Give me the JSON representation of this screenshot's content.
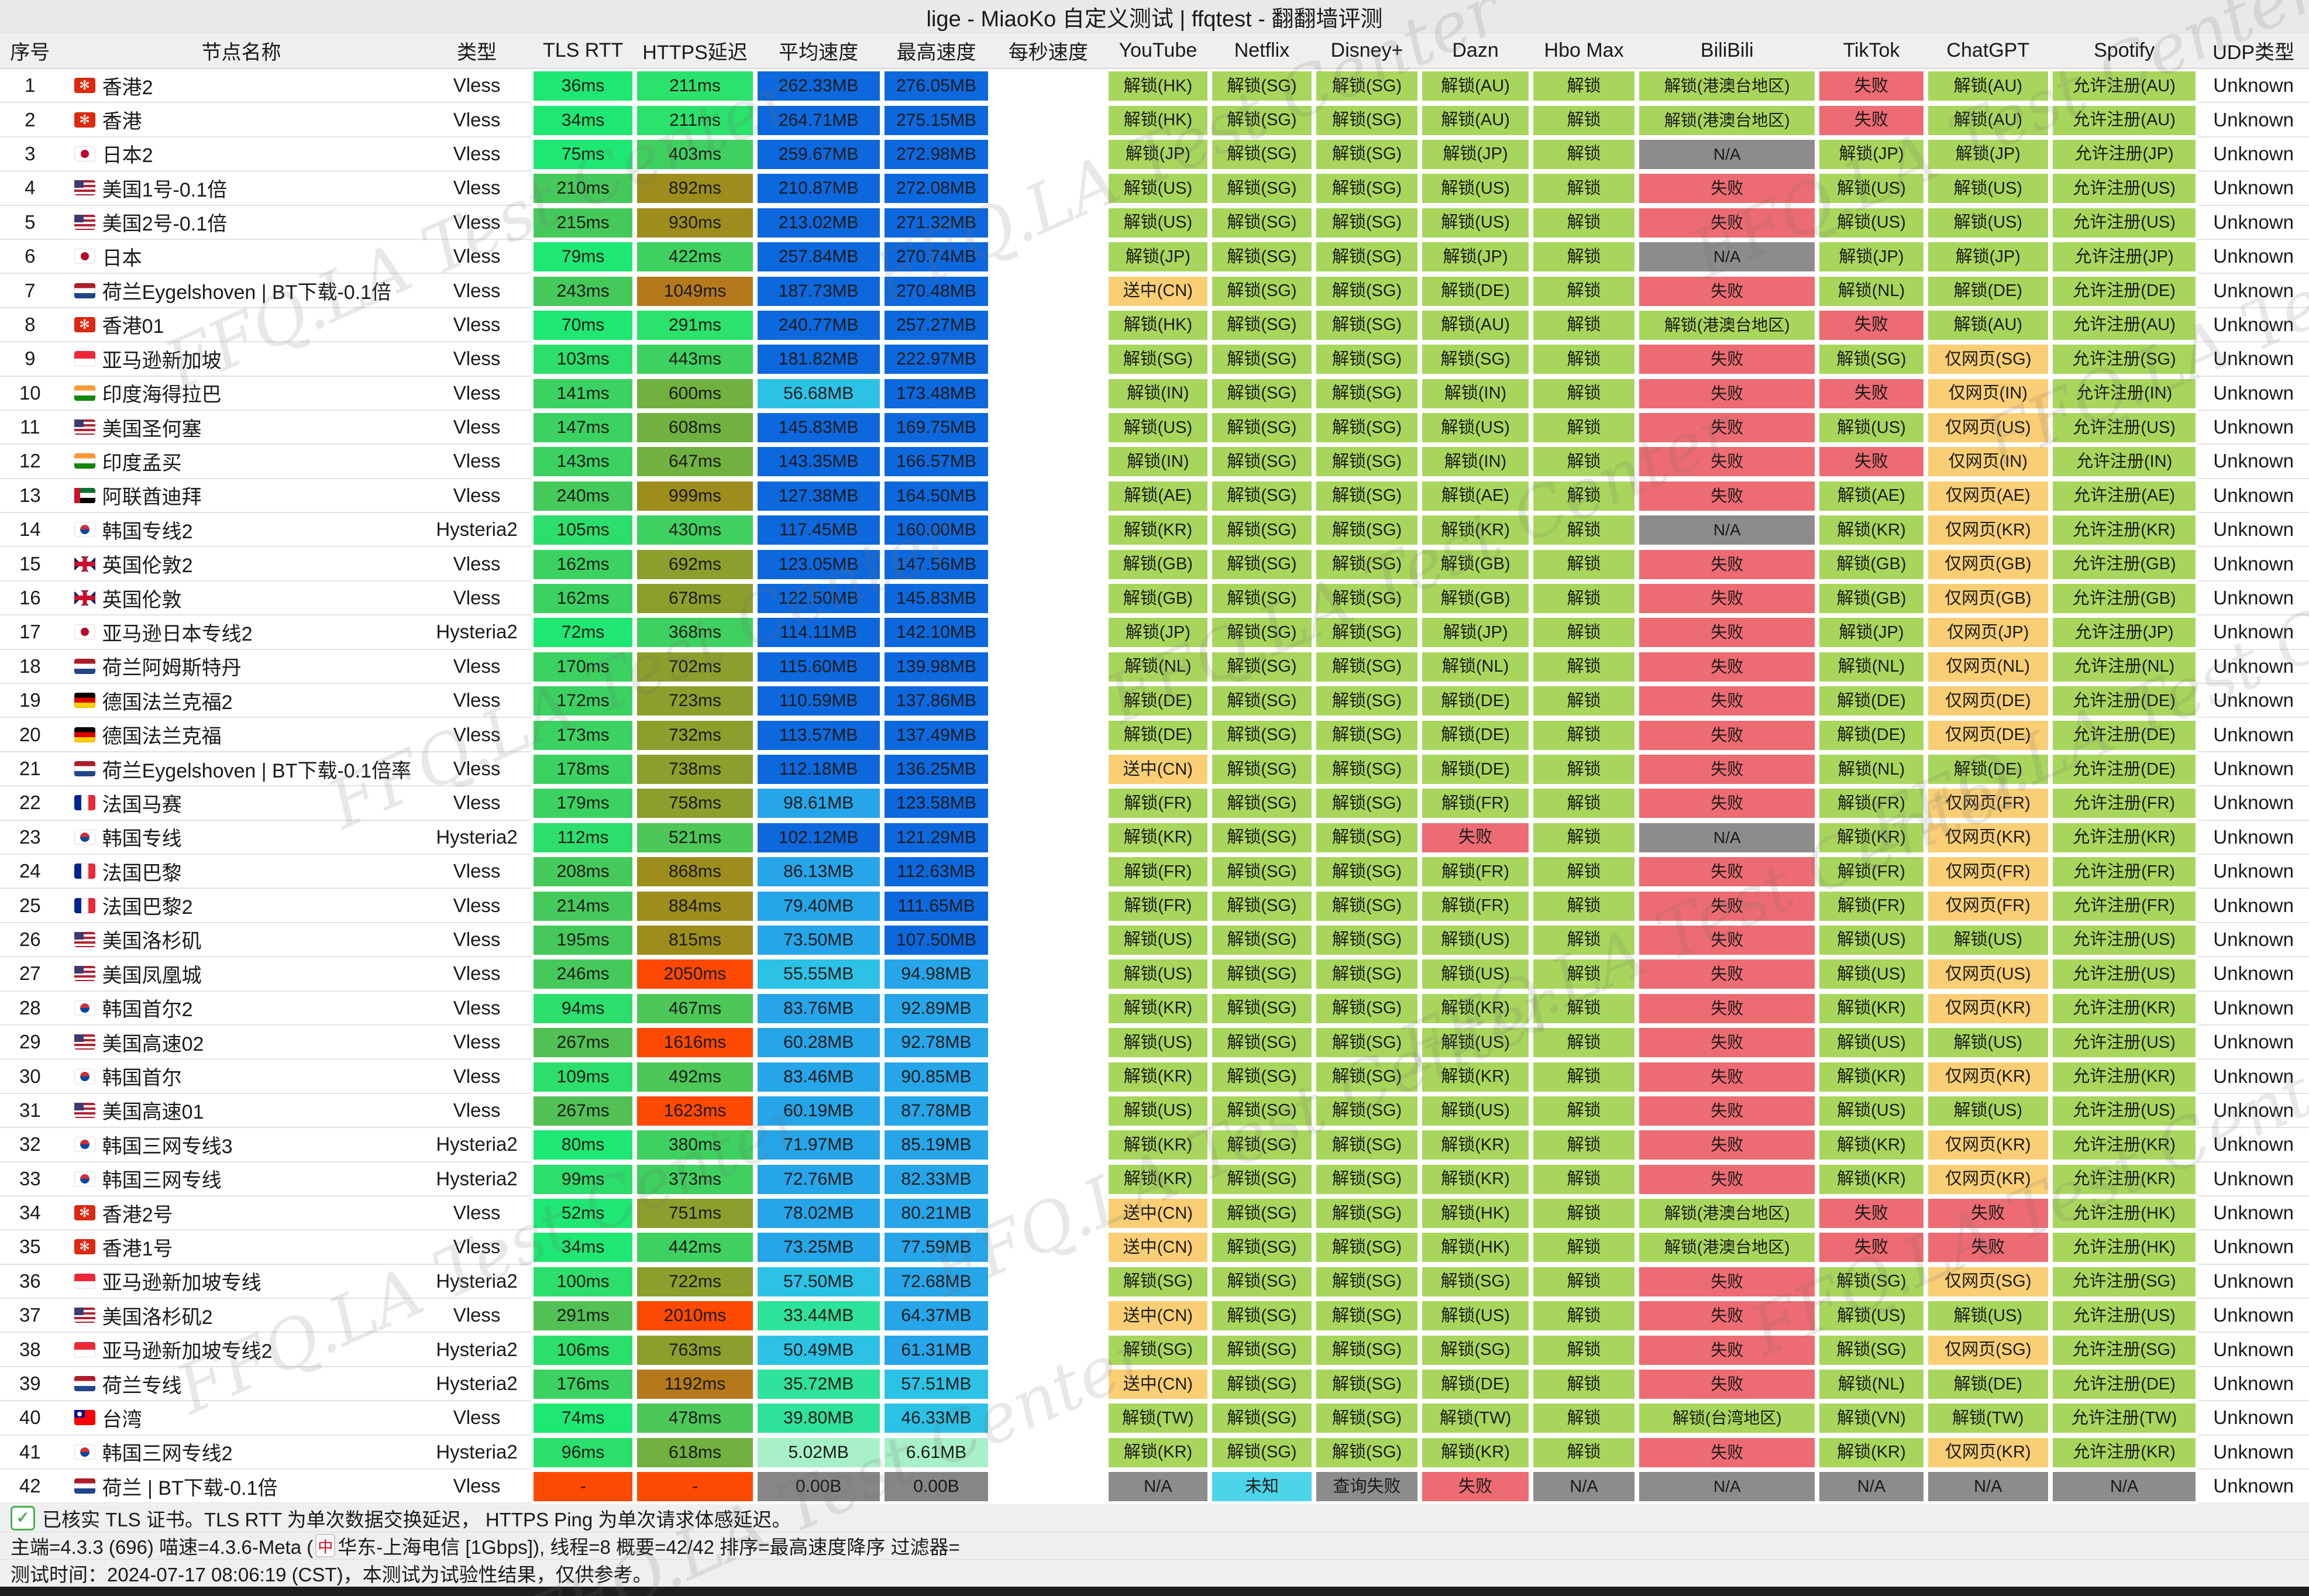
{
  "title": "lige - MiaoKo 自定义测试 | ffqtest - 翻翻墙评测",
  "watermark_text": "FFQ.LA Test Center",
  "columns": [
    {
      "key": "idx",
      "label": "序号",
      "w": 2.6
    },
    {
      "key": "name",
      "label": "节点名称",
      "w": 15.7
    },
    {
      "key": "type",
      "label": "类型",
      "w": 4.7
    },
    {
      "key": "rtt",
      "label": "TLS RTT",
      "w": 4.5
    },
    {
      "key": "https",
      "label": "HTTPS延迟",
      "w": 5.2
    },
    {
      "key": "avg",
      "label": "平均速度",
      "w": 5.5
    },
    {
      "key": "max",
      "label": "最高速度",
      "w": 4.7
    },
    {
      "key": "sps",
      "label": "每秒速度",
      "w": 5.0
    },
    {
      "key": "youtube",
      "label": "YouTube",
      "w": 4.5
    },
    {
      "key": "netflix",
      "label": "Netflix",
      "w": 4.5
    },
    {
      "key": "disney",
      "label": "Disney+",
      "w": 4.6
    },
    {
      "key": "dazn",
      "label": "Dazn",
      "w": 4.8
    },
    {
      "key": "hbomax",
      "label": "Hbo Max",
      "w": 4.6
    },
    {
      "key": "bilibili",
      "label": "BiliBili",
      "w": 7.8
    },
    {
      "key": "tiktok",
      "label": "TikTok",
      "w": 4.7
    },
    {
      "key": "chatgpt",
      "label": "ChatGPT",
      "w": 5.4
    },
    {
      "key": "spotify",
      "label": "Spotify",
      "w": 6.4
    },
    {
      "key": "udp",
      "label": "UDP类型",
      "w": 4.8
    }
  ],
  "row_fields": [
    "idx",
    "flag",
    "name",
    "type",
    "rtt",
    "https",
    "avg",
    "max",
    "statuses(youtube,netflix,disney,dazn,hbomax,bilibili,tiktok,chatgpt,spotify,udp)"
  ],
  "rows": [
    [
      1,
      "hk",
      "香港2",
      "Vless",
      "36ms",
      "211ms",
      "262.33MB",
      "276.05MB",
      [
        "解锁(HK)",
        "解锁(SG)",
        "解锁(SG)",
        "解锁(AU)",
        "解锁",
        "解锁(港澳台地区)",
        "失败",
        "解锁(AU)",
        "允许注册(AU)",
        "Unknown"
      ]
    ],
    [
      2,
      "hk",
      "香港",
      "Vless",
      "34ms",
      "211ms",
      "264.71MB",
      "275.15MB",
      [
        "解锁(HK)",
        "解锁(SG)",
        "解锁(SG)",
        "解锁(AU)",
        "解锁",
        "解锁(港澳台地区)",
        "失败",
        "解锁(AU)",
        "允许注册(AU)",
        "Unknown"
      ]
    ],
    [
      3,
      "jp",
      "日本2",
      "Vless",
      "75ms",
      "403ms",
      "259.67MB",
      "272.98MB",
      [
        "解锁(JP)",
        "解锁(SG)",
        "解锁(SG)",
        "解锁(JP)",
        "解锁",
        "N/A",
        "解锁(JP)",
        "解锁(JP)",
        "允许注册(JP)",
        "Unknown"
      ]
    ],
    [
      4,
      "us",
      "美国1号-0.1倍",
      "Vless",
      "210ms",
      "892ms",
      "210.87MB",
      "272.08MB",
      [
        "解锁(US)",
        "解锁(SG)",
        "解锁(SG)",
        "解锁(US)",
        "解锁",
        "失败",
        "解锁(US)",
        "解锁(US)",
        "允许注册(US)",
        "Unknown"
      ]
    ],
    [
      5,
      "us",
      "美国2号-0.1倍",
      "Vless",
      "215ms",
      "930ms",
      "213.02MB",
      "271.32MB",
      [
        "解锁(US)",
        "解锁(SG)",
        "解锁(SG)",
        "解锁(US)",
        "解锁",
        "失败",
        "解锁(US)",
        "解锁(US)",
        "允许注册(US)",
        "Unknown"
      ]
    ],
    [
      6,
      "jp",
      "日本",
      "Vless",
      "79ms",
      "422ms",
      "257.84MB",
      "270.74MB",
      [
        "解锁(JP)",
        "解锁(SG)",
        "解锁(SG)",
        "解锁(JP)",
        "解锁",
        "N/A",
        "解锁(JP)",
        "解锁(JP)",
        "允许注册(JP)",
        "Unknown"
      ]
    ],
    [
      7,
      "nl",
      "荷兰Eygelshoven | BT下载-0.1倍",
      "Vless",
      "243ms",
      "1049ms",
      "187.73MB",
      "270.48MB",
      [
        "送中(CN)",
        "解锁(SG)",
        "解锁(SG)",
        "解锁(DE)",
        "解锁",
        "失败",
        "解锁(NL)",
        "解锁(DE)",
        "允许注册(DE)",
        "Unknown"
      ]
    ],
    [
      8,
      "hk",
      "香港01",
      "Vless",
      "70ms",
      "291ms",
      "240.77MB",
      "257.27MB",
      [
        "解锁(HK)",
        "解锁(SG)",
        "解锁(SG)",
        "解锁(AU)",
        "解锁",
        "解锁(港澳台地区)",
        "失败",
        "解锁(AU)",
        "允许注册(AU)",
        "Unknown"
      ]
    ],
    [
      9,
      "sg",
      "亚马逊新加坡",
      "Vless",
      "103ms",
      "443ms",
      "181.82MB",
      "222.97MB",
      [
        "解锁(SG)",
        "解锁(SG)",
        "解锁(SG)",
        "解锁(SG)",
        "解锁",
        "失败",
        "解锁(SG)",
        "仅网页(SG)",
        "允许注册(SG)",
        "Unknown"
      ]
    ],
    [
      10,
      "in",
      "印度海得拉巴",
      "Vless",
      "141ms",
      "600ms",
      "56.68MB",
      "173.48MB",
      [
        "解锁(IN)",
        "解锁(SG)",
        "解锁(SG)",
        "解锁(IN)",
        "解锁",
        "失败",
        "失败",
        "仅网页(IN)",
        "允许注册(IN)",
        "Unknown"
      ]
    ],
    [
      11,
      "us",
      "美国圣何塞",
      "Vless",
      "147ms",
      "608ms",
      "145.83MB",
      "169.75MB",
      [
        "解锁(US)",
        "解锁(SG)",
        "解锁(SG)",
        "解锁(US)",
        "解锁",
        "失败",
        "解锁(US)",
        "仅网页(US)",
        "允许注册(US)",
        "Unknown"
      ]
    ],
    [
      12,
      "in",
      "印度孟买",
      "Vless",
      "143ms",
      "647ms",
      "143.35MB",
      "166.57MB",
      [
        "解锁(IN)",
        "解锁(SG)",
        "解锁(SG)",
        "解锁(IN)",
        "解锁",
        "失败",
        "失败",
        "仅网页(IN)",
        "允许注册(IN)",
        "Unknown"
      ]
    ],
    [
      13,
      "ae",
      "阿联酋迪拜",
      "Vless",
      "240ms",
      "999ms",
      "127.38MB",
      "164.50MB",
      [
        "解锁(AE)",
        "解锁(SG)",
        "解锁(SG)",
        "解锁(AE)",
        "解锁",
        "失败",
        "解锁(AE)",
        "仅网页(AE)",
        "允许注册(AE)",
        "Unknown"
      ]
    ],
    [
      14,
      "kr",
      "韩国专线2",
      "Hysteria2",
      "105ms",
      "430ms",
      "117.45MB",
      "160.00MB",
      [
        "解锁(KR)",
        "解锁(SG)",
        "解锁(SG)",
        "解锁(KR)",
        "解锁",
        "N/A",
        "解锁(KR)",
        "仅网页(KR)",
        "允许注册(KR)",
        "Unknown"
      ]
    ],
    [
      15,
      "gb",
      "英国伦敦2",
      "Vless",
      "162ms",
      "692ms",
      "123.05MB",
      "147.56MB",
      [
        "解锁(GB)",
        "解锁(SG)",
        "解锁(SG)",
        "解锁(GB)",
        "解锁",
        "失败",
        "解锁(GB)",
        "仅网页(GB)",
        "允许注册(GB)",
        "Unknown"
      ]
    ],
    [
      16,
      "gb",
      "英国伦敦",
      "Vless",
      "162ms",
      "678ms",
      "122.50MB",
      "145.83MB",
      [
        "解锁(GB)",
        "解锁(SG)",
        "解锁(SG)",
        "解锁(GB)",
        "解锁",
        "失败",
        "解锁(GB)",
        "仅网页(GB)",
        "允许注册(GB)",
        "Unknown"
      ]
    ],
    [
      17,
      "jp",
      "亚马逊日本专线2",
      "Hysteria2",
      "72ms",
      "368ms",
      "114.11MB",
      "142.10MB",
      [
        "解锁(JP)",
        "解锁(SG)",
        "解锁(SG)",
        "解锁(JP)",
        "解锁",
        "失败",
        "解锁(JP)",
        "仅网页(JP)",
        "允许注册(JP)",
        "Unknown"
      ]
    ],
    [
      18,
      "nl",
      "荷兰阿姆斯特丹",
      "Vless",
      "170ms",
      "702ms",
      "115.60MB",
      "139.98MB",
      [
        "解锁(NL)",
        "解锁(SG)",
        "解锁(SG)",
        "解锁(NL)",
        "解锁",
        "失败",
        "解锁(NL)",
        "仅网页(NL)",
        "允许注册(NL)",
        "Unknown"
      ]
    ],
    [
      19,
      "de",
      "德国法兰克福2",
      "Vless",
      "172ms",
      "723ms",
      "110.59MB",
      "137.86MB",
      [
        "解锁(DE)",
        "解锁(SG)",
        "解锁(SG)",
        "解锁(DE)",
        "解锁",
        "失败",
        "解锁(DE)",
        "仅网页(DE)",
        "允许注册(DE)",
        "Unknown"
      ]
    ],
    [
      20,
      "de",
      "德国法兰克福",
      "Vless",
      "173ms",
      "732ms",
      "113.57MB",
      "137.49MB",
      [
        "解锁(DE)",
        "解锁(SG)",
        "解锁(SG)",
        "解锁(DE)",
        "解锁",
        "失败",
        "解锁(DE)",
        "仅网页(DE)",
        "允许注册(DE)",
        "Unknown"
      ]
    ],
    [
      21,
      "nl",
      "荷兰Eygelshoven | BT下载-0.1倍率",
      "Vless",
      "178ms",
      "738ms",
      "112.18MB",
      "136.25MB",
      [
        "送中(CN)",
        "解锁(SG)",
        "解锁(SG)",
        "解锁(DE)",
        "解锁",
        "失败",
        "解锁(NL)",
        "解锁(DE)",
        "允许注册(DE)",
        "Unknown"
      ]
    ],
    [
      22,
      "fr",
      "法国马赛",
      "Vless",
      "179ms",
      "758ms",
      "98.61MB",
      "123.58MB",
      [
        "解锁(FR)",
        "解锁(SG)",
        "解锁(SG)",
        "解锁(FR)",
        "解锁",
        "失败",
        "解锁(FR)",
        "仅网页(FR)",
        "允许注册(FR)",
        "Unknown"
      ]
    ],
    [
      23,
      "kr",
      "韩国专线",
      "Hysteria2",
      "112ms",
      "521ms",
      "102.12MB",
      "121.29MB",
      [
        "解锁(KR)",
        "解锁(SG)",
        "解锁(SG)",
        "失败",
        "解锁",
        "N/A",
        "解锁(KR)",
        "仅网页(KR)",
        "允许注册(KR)",
        "Unknown"
      ]
    ],
    [
      24,
      "fr",
      "法国巴黎",
      "Vless",
      "208ms",
      "868ms",
      "86.13MB",
      "112.63MB",
      [
        "解锁(FR)",
        "解锁(SG)",
        "解锁(SG)",
        "解锁(FR)",
        "解锁",
        "失败",
        "解锁(FR)",
        "仅网页(FR)",
        "允许注册(FR)",
        "Unknown"
      ]
    ],
    [
      25,
      "fr",
      "法国巴黎2",
      "Vless",
      "214ms",
      "884ms",
      "79.40MB",
      "111.65MB",
      [
        "解锁(FR)",
        "解锁(SG)",
        "解锁(SG)",
        "解锁(FR)",
        "解锁",
        "失败",
        "解锁(FR)",
        "仅网页(FR)",
        "允许注册(FR)",
        "Unknown"
      ]
    ],
    [
      26,
      "us",
      "美国洛杉矶",
      "Vless",
      "195ms",
      "815ms",
      "73.50MB",
      "107.50MB",
      [
        "解锁(US)",
        "解锁(SG)",
        "解锁(SG)",
        "解锁(US)",
        "解锁",
        "失败",
        "解锁(US)",
        "解锁(US)",
        "允许注册(US)",
        "Unknown"
      ]
    ],
    [
      27,
      "us",
      "美国凤凰城",
      "Vless",
      "246ms",
      "2050ms",
      "55.55MB",
      "94.98MB",
      [
        "解锁(US)",
        "解锁(SG)",
        "解锁(SG)",
        "解锁(US)",
        "解锁",
        "失败",
        "解锁(US)",
        "仅网页(US)",
        "允许注册(US)",
        "Unknown"
      ]
    ],
    [
      28,
      "kr",
      "韩国首尔2",
      "Vless",
      "94ms",
      "467ms",
      "83.76MB",
      "92.89MB",
      [
        "解锁(KR)",
        "解锁(SG)",
        "解锁(SG)",
        "解锁(KR)",
        "解锁",
        "失败",
        "解锁(KR)",
        "仅网页(KR)",
        "允许注册(KR)",
        "Unknown"
      ]
    ],
    [
      29,
      "us",
      "美国高速02",
      "Vless",
      "267ms",
      "1616ms",
      "60.28MB",
      "92.78MB",
      [
        "解锁(US)",
        "解锁(SG)",
        "解锁(SG)",
        "解锁(US)",
        "解锁",
        "失败",
        "解锁(US)",
        "解锁(US)",
        "允许注册(US)",
        "Unknown"
      ]
    ],
    [
      30,
      "kr",
      "韩国首尔",
      "Vless",
      "109ms",
      "492ms",
      "83.46MB",
      "90.85MB",
      [
        "解锁(KR)",
        "解锁(SG)",
        "解锁(SG)",
        "解锁(KR)",
        "解锁",
        "失败",
        "解锁(KR)",
        "仅网页(KR)",
        "允许注册(KR)",
        "Unknown"
      ]
    ],
    [
      31,
      "us",
      "美国高速01",
      "Vless",
      "267ms",
      "1623ms",
      "60.19MB",
      "87.78MB",
      [
        "解锁(US)",
        "解锁(SG)",
        "解锁(SG)",
        "解锁(US)",
        "解锁",
        "失败",
        "解锁(US)",
        "解锁(US)",
        "允许注册(US)",
        "Unknown"
      ]
    ],
    [
      32,
      "kr",
      "韩国三网专线3",
      "Hysteria2",
      "80ms",
      "380ms",
      "71.97MB",
      "85.19MB",
      [
        "解锁(KR)",
        "解锁(SG)",
        "解锁(SG)",
        "解锁(KR)",
        "解锁",
        "失败",
        "解锁(KR)",
        "仅网页(KR)",
        "允许注册(KR)",
        "Unknown"
      ]
    ],
    [
      33,
      "kr",
      "韩国三网专线",
      "Hysteria2",
      "99ms",
      "373ms",
      "72.76MB",
      "82.33MB",
      [
        "解锁(KR)",
        "解锁(SG)",
        "解锁(SG)",
        "解锁(KR)",
        "解锁",
        "失败",
        "解锁(KR)",
        "仅网页(KR)",
        "允许注册(KR)",
        "Unknown"
      ]
    ],
    [
      34,
      "hk",
      "香港2号",
      "Vless",
      "52ms",
      "751ms",
      "78.02MB",
      "80.21MB",
      [
        "送中(CN)",
        "解锁(SG)",
        "解锁(SG)",
        "解锁(HK)",
        "解锁",
        "解锁(港澳台地区)",
        "失败",
        "失败",
        "允许注册(HK)",
        "Unknown"
      ]
    ],
    [
      35,
      "hk",
      "香港1号",
      "Vless",
      "34ms",
      "442ms",
      "73.25MB",
      "77.59MB",
      [
        "送中(CN)",
        "解锁(SG)",
        "解锁(SG)",
        "解锁(HK)",
        "解锁",
        "解锁(港澳台地区)",
        "失败",
        "失败",
        "允许注册(HK)",
        "Unknown"
      ]
    ],
    [
      36,
      "sg",
      "亚马逊新加坡专线",
      "Hysteria2",
      "100ms",
      "722ms",
      "57.50MB",
      "72.68MB",
      [
        "解锁(SG)",
        "解锁(SG)",
        "解锁(SG)",
        "解锁(SG)",
        "解锁",
        "失败",
        "解锁(SG)",
        "仅网页(SG)",
        "允许注册(SG)",
        "Unknown"
      ]
    ],
    [
      37,
      "us",
      "美国洛杉矶2",
      "Vless",
      "291ms",
      "2010ms",
      "33.44MB",
      "64.37MB",
      [
        "送中(CN)",
        "解锁(SG)",
        "解锁(SG)",
        "解锁(US)",
        "解锁",
        "失败",
        "解锁(US)",
        "解锁(US)",
        "允许注册(US)",
        "Unknown"
      ]
    ],
    [
      38,
      "sg",
      "亚马逊新加坡专线2",
      "Hysteria2",
      "106ms",
      "763ms",
      "50.49MB",
      "61.31MB",
      [
        "解锁(SG)",
        "解锁(SG)",
        "解锁(SG)",
        "解锁(SG)",
        "解锁",
        "失败",
        "解锁(SG)",
        "仅网页(SG)",
        "允许注册(SG)",
        "Unknown"
      ]
    ],
    [
      39,
      "nl",
      "荷兰专线",
      "Hysteria2",
      "176ms",
      "1192ms",
      "35.72MB",
      "57.51MB",
      [
        "送中(CN)",
        "解锁(SG)",
        "解锁(SG)",
        "解锁(DE)",
        "解锁",
        "失败",
        "解锁(NL)",
        "解锁(DE)",
        "允许注册(DE)",
        "Unknown"
      ]
    ],
    [
      40,
      "tw",
      "台湾",
      "Vless",
      "74ms",
      "478ms",
      "39.80MB",
      "46.33MB",
      [
        "解锁(TW)",
        "解锁(SG)",
        "解锁(SG)",
        "解锁(TW)",
        "解锁",
        "解锁(台湾地区)",
        "解锁(VN)",
        "解锁(TW)",
        "允许注册(TW)",
        "Unknown"
      ]
    ],
    [
      41,
      "kr",
      "韩国三网专线2",
      "Hysteria2",
      "96ms",
      "618ms",
      "5.02MB",
      "6.61MB",
      [
        "解锁(KR)",
        "解锁(SG)",
        "解锁(SG)",
        "解锁(KR)",
        "解锁",
        "失败",
        "解锁(KR)",
        "仅网页(KR)",
        "允许注册(KR)",
        "Unknown"
      ]
    ],
    [
      42,
      "nl",
      "荷兰 | BT下载-0.1倍",
      "Vless",
      "-",
      "-",
      "0.00B",
      "0.00B",
      [
        "N/A",
        "未知",
        "查询失败",
        "失败",
        "N/A",
        "N/A",
        "N/A",
        "N/A",
        "N/A",
        "Unknown"
      ]
    ]
  ],
  "palette": {
    "status_ok": "#a8d65c",
    "status_fail": "#ed6b72",
    "status_na": "#8c8c8c",
    "status_warn": "#f9ce74",
    "status_info": "#4ed4e8",
    "latency_dash": "#fe4902",
    "speed_zero": "#868686",
    "rtt_tiers": [
      [
        80,
        "#1ee873"
      ],
      [
        120,
        "#2cde6b"
      ],
      [
        180,
        "#3bd262"
      ],
      [
        250,
        "#46c95b"
      ],
      [
        99999,
        "#52c055"
      ]
    ],
    "https_tiers": [
      [
        300,
        "#2be26c"
      ],
      [
        450,
        "#3fd160"
      ],
      [
        530,
        "#4cc758"
      ],
      [
        660,
        "#71b13f"
      ],
      [
        800,
        "#8d9e2c"
      ],
      [
        1000,
        "#9d8d1d"
      ],
      [
        1300,
        "#b5791c"
      ],
      [
        99999,
        "#fe4902"
      ]
    ],
    "speed_tiers": [
      [
        10,
        "#a8f0c8"
      ],
      [
        44,
        "#2fe29b"
      ],
      [
        58,
        "#2bc2e6"
      ],
      [
        100,
        "#26a5e9"
      ],
      [
        99999,
        "#0d68dd"
      ]
    ]
  },
  "footer": {
    "check_icon": "✓",
    "line1": "已核实 TLS 证书。TLS RTT 为单次数据交换延迟， HTTPS Ping 为单次请求体感延迟。",
    "line2_pre": "主端=4.3.3 (696) 喵速=4.3.6-Meta (",
    "line2_icon": "中",
    "line2_post": "华东-上海电信 [1Gbps]), 线程=8 概要=42/42 排序=最高速度降序 过滤器=",
    "line3": "测试时间：2024-07-17 08:06:19 (CST)，本测试为试验性结果，仅供参考。"
  }
}
